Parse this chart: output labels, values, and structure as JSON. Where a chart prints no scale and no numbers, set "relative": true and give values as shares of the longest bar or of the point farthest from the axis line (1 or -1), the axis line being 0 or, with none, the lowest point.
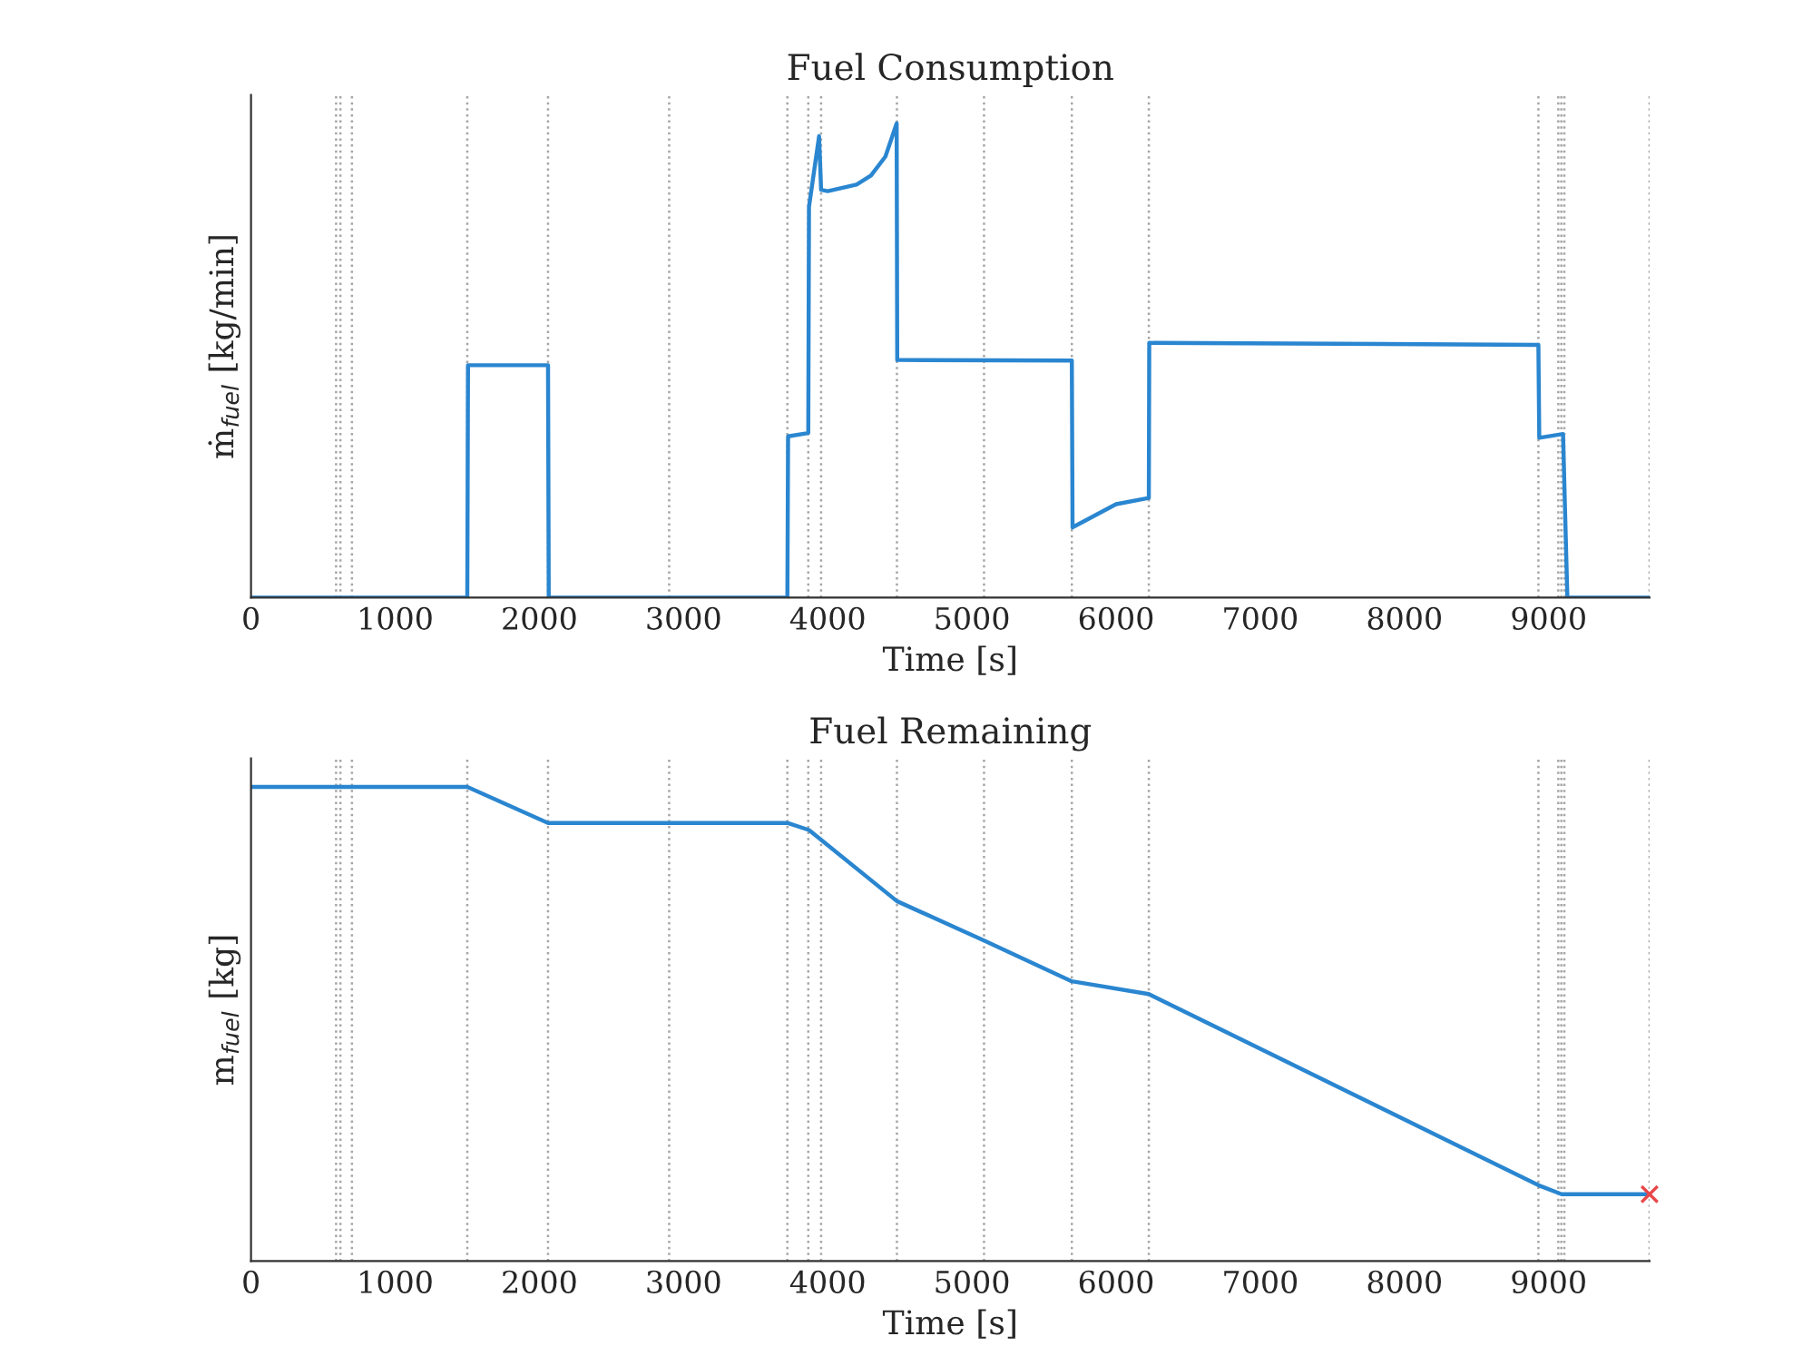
{
  "chart_data": [
    {
      "type": "line",
      "title": "Fuel Consumption",
      "xlabel": "Time [s]",
      "ylabel": "ṁ$_{fuel}$ [kg/min]",
      "relative": true,
      "xlim": [
        0,
        9700
      ],
      "xticks": [
        0,
        1000,
        2000,
        3000,
        4000,
        5000,
        6000,
        7000,
        8000,
        9000
      ],
      "tick_labels": "x",
      "line_style": "solid",
      "series": [
        {
          "color": "#2a86d0",
          "x": [
            0,
            1500,
            1505,
            2060,
            2065,
            3720,
            3725,
            3865,
            3870,
            3940,
            3954,
            4000,
            4200,
            4300,
            4400,
            4478,
            4482,
            5693,
            5698,
            6000,
            6227,
            6230,
            8929,
            8935,
            9100,
            9115,
            9130,
            9700
          ],
          "values": [
            0,
            0,
            0.49,
            0.49,
            0,
            0,
            0.34,
            0.347,
            0.824,
            0.973,
            0.86,
            0.857,
            0.871,
            0.89,
            0.93,
            1.0,
            0.501,
            0.5,
            0.148,
            0.197,
            0.21,
            0.537,
            0.533,
            0.337,
            0.345,
            0.17,
            0,
            0
          ]
        }
      ],
      "ref_lines": [
        {
          "axis": "x",
          "value": 590,
          "color": "#a6a6a6",
          "line_style": "dotted"
        },
        {
          "axis": "x",
          "value": 620,
          "color": "#a6a6a6",
          "line_style": "dotted"
        },
        {
          "axis": "x",
          "value": 700,
          "color": "#a6a6a6",
          "line_style": "dotted"
        },
        {
          "axis": "x",
          "value": 1500,
          "color": "#a6a6a6",
          "line_style": "dotted"
        },
        {
          "axis": "x",
          "value": 2060,
          "color": "#a6a6a6",
          "line_style": "dotted"
        },
        {
          "axis": "x",
          "value": 2900,
          "color": "#a6a6a6",
          "line_style": "dotted"
        },
        {
          "axis": "x",
          "value": 3720,
          "color": "#a6a6a6",
          "line_style": "dotted"
        },
        {
          "axis": "x",
          "value": 3865,
          "color": "#a6a6a6",
          "line_style": "dotted"
        },
        {
          "axis": "x",
          "value": 3954,
          "color": "#a6a6a6",
          "line_style": "dotted"
        },
        {
          "axis": "x",
          "value": 4480,
          "color": "#a6a6a6",
          "line_style": "dotted"
        },
        {
          "axis": "x",
          "value": 5084,
          "color": "#a6a6a6",
          "line_style": "dotted"
        },
        {
          "axis": "x",
          "value": 5693,
          "color": "#a6a6a6",
          "line_style": "dotted"
        },
        {
          "axis": "x",
          "value": 6227,
          "color": "#a6a6a6",
          "line_style": "dotted"
        },
        {
          "axis": "x",
          "value": 8929,
          "color": "#a6a6a6",
          "line_style": "dotted"
        },
        {
          "axis": "x",
          "value": 9067,
          "color": "#a6a6a6",
          "line_style": "dotted"
        },
        {
          "axis": "x",
          "value": 9088,
          "color": "#a6a6a6",
          "line_style": "dotted"
        },
        {
          "axis": "x",
          "value": 9109,
          "color": "#a6a6a6",
          "line_style": "dotted"
        },
        {
          "axis": "x",
          "value": 9700,
          "color": "#a6a6a6",
          "line_style": "dotted"
        }
      ]
    },
    {
      "type": "line",
      "title": "Fuel Remaining",
      "xlabel": "Time [s]",
      "ylabel": "m$_{fuel}$ [kg]",
      "relative": true,
      "xlim": [
        0,
        9700
      ],
      "xticks": [
        0,
        1000,
        2000,
        3000,
        4000,
        5000,
        6000,
        7000,
        8000,
        9000
      ],
      "tick_labels": "x",
      "line_style": "solid",
      "series": [
        {
          "color": "#2a86d0",
          "x": [
            0,
            1500,
            2060,
            3720,
            3870,
            4480,
            5084,
            5693,
            6227,
            8929,
            9090,
            9700
          ],
          "values": [
            1.0,
            1.0,
            0.924,
            0.924,
            0.909,
            0.759,
            0.676,
            0.59,
            0.563,
            0.16,
            0.141,
            0.141
          ]
        },
        {
          "type": "scatter",
          "marker": "cross",
          "color": "#e8474a",
          "x": [
            9700
          ],
          "values": [
            0.141
          ]
        }
      ],
      "ref_lines": [
        {
          "axis": "x",
          "value": 590,
          "color": "#a6a6a6",
          "line_style": "dotted"
        },
        {
          "axis": "x",
          "value": 620,
          "color": "#a6a6a6",
          "line_style": "dotted"
        },
        {
          "axis": "x",
          "value": 700,
          "color": "#a6a6a6",
          "line_style": "dotted"
        },
        {
          "axis": "x",
          "value": 1500,
          "color": "#a6a6a6",
          "line_style": "dotted"
        },
        {
          "axis": "x",
          "value": 2060,
          "color": "#a6a6a6",
          "line_style": "dotted"
        },
        {
          "axis": "x",
          "value": 2900,
          "color": "#a6a6a6",
          "line_style": "dotted"
        },
        {
          "axis": "x",
          "value": 3720,
          "color": "#a6a6a6",
          "line_style": "dotted"
        },
        {
          "axis": "x",
          "value": 3865,
          "color": "#a6a6a6",
          "line_style": "dotted"
        },
        {
          "axis": "x",
          "value": 3954,
          "color": "#a6a6a6",
          "line_style": "dotted"
        },
        {
          "axis": "x",
          "value": 4480,
          "color": "#a6a6a6",
          "line_style": "dotted"
        },
        {
          "axis": "x",
          "value": 5084,
          "color": "#a6a6a6",
          "line_style": "dotted"
        },
        {
          "axis": "x",
          "value": 5693,
          "color": "#a6a6a6",
          "line_style": "dotted"
        },
        {
          "axis": "x",
          "value": 6227,
          "color": "#a6a6a6",
          "line_style": "dotted"
        },
        {
          "axis": "x",
          "value": 8929,
          "color": "#a6a6a6",
          "line_style": "dotted"
        },
        {
          "axis": "x",
          "value": 9067,
          "color": "#a6a6a6",
          "line_style": "dotted"
        },
        {
          "axis": "x",
          "value": 9088,
          "color": "#a6a6a6",
          "line_style": "dotted"
        },
        {
          "axis": "x",
          "value": 9109,
          "color": "#a6a6a6",
          "line_style": "dotted"
        },
        {
          "axis": "x",
          "value": 9700,
          "color": "#a6a6a6",
          "line_style": "dotted"
        }
      ]
    }
  ]
}
